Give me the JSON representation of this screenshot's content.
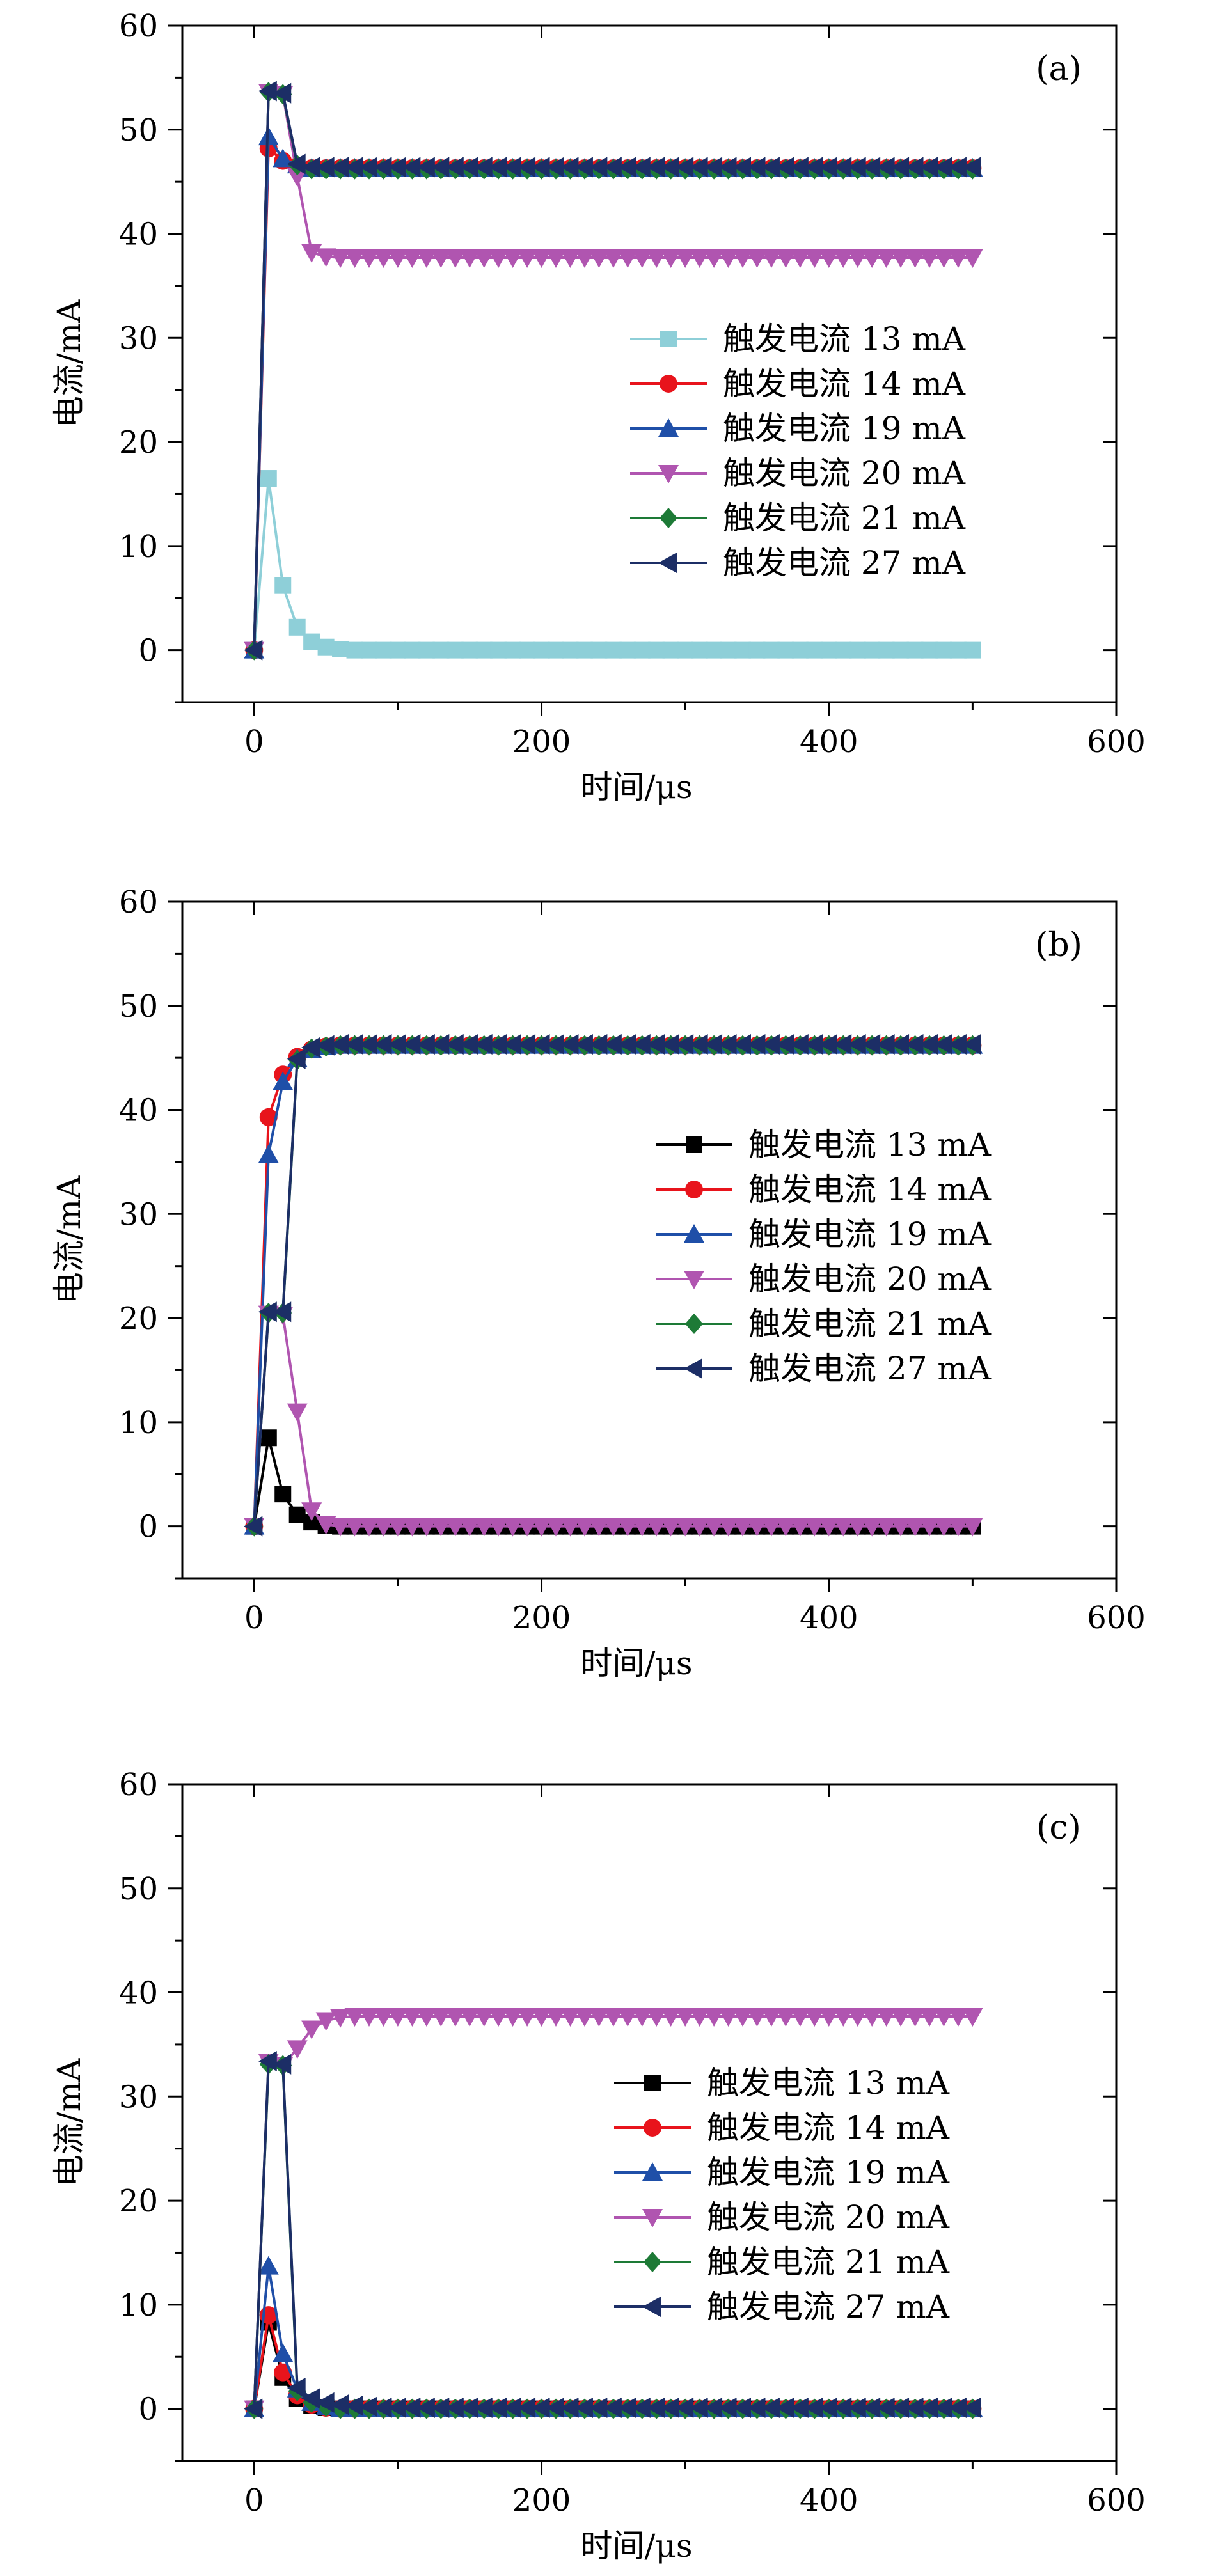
{
  "chart_data": [
    {
      "type": "line",
      "panel_label": "(a)",
      "xlabel": "时间/μs",
      "ylabel": "电流/mA",
      "xlim": [
        -50,
        600
      ],
      "ylim": [
        -5,
        60
      ],
      "xticks": [
        0,
        200,
        400,
        600
      ],
      "yticks": [
        0,
        10,
        20,
        30,
        40,
        50,
        60
      ],
      "grid": false,
      "legend_position": "center-right",
      "x": [
        0,
        10,
        20,
        30,
        40,
        50,
        60,
        70,
        80,
        90,
        100,
        110,
        120,
        130,
        140,
        150,
        160,
        170,
        180,
        190,
        200,
        210,
        220,
        230,
        240,
        250,
        260,
        270,
        280,
        290,
        300,
        310,
        320,
        330,
        340,
        350,
        360,
        370,
        380,
        390,
        400,
        410,
        420,
        430,
        440,
        450,
        460,
        470,
        480,
        490,
        500
      ],
      "series": [
        {
          "name": "触发电流 13 mA",
          "color": "#8ecfd8",
          "marker": "square",
          "head": [
            0,
            16.5,
            6.2,
            2.2,
            0.8,
            0.3,
            0.1
          ],
          "steady": 0
        },
        {
          "name": "触发电流 14 mA",
          "color": "#e8141c",
          "marker": "circle",
          "head": [
            0,
            48.2,
            47.0,
            46.5
          ],
          "steady": 46.3
        },
        {
          "name": "触发电流 19 mA",
          "color": "#1f4fa8",
          "marker": "triangle-up",
          "head": [
            0,
            49.3,
            47.2,
            46.6
          ],
          "steady": 46.3
        },
        {
          "name": "触发电流 20 mA",
          "color": "#b055b0",
          "marker": "triangle-down",
          "head": [
            0,
            53.6,
            53.4,
            45.5,
            38.2,
            37.8
          ],
          "steady": 37.7
        },
        {
          "name": "触发电流 21 mA",
          "color": "#1d7a36",
          "marker": "diamond",
          "head": [
            0,
            53.6,
            53.4,
            46.6
          ],
          "steady": 46.2
        },
        {
          "name": "触发电流 27 mA",
          "color": "#1c2e66",
          "marker": "triangle-left",
          "head": [
            0,
            53.7,
            53.5,
            46.7
          ],
          "steady": 46.4
        }
      ]
    },
    {
      "type": "line",
      "panel_label": "(b)",
      "xlabel": "时间/μs",
      "ylabel": "电流/mA",
      "xlim": [
        -50,
        600
      ],
      "ylim": [
        -5,
        60
      ],
      "xticks": [
        0,
        200,
        400,
        600
      ],
      "yticks": [
        0,
        10,
        20,
        30,
        40,
        50,
        60
      ],
      "grid": false,
      "legend_position": "center-right",
      "x": [
        0,
        10,
        20,
        30,
        40,
        50,
        60,
        70,
        80,
        90,
        100,
        110,
        120,
        130,
        140,
        150,
        160,
        170,
        180,
        190,
        200,
        210,
        220,
        230,
        240,
        250,
        260,
        270,
        280,
        290,
        300,
        310,
        320,
        330,
        340,
        350,
        360,
        370,
        380,
        390,
        400,
        410,
        420,
        430,
        440,
        450,
        460,
        470,
        480,
        490,
        500
      ],
      "series": [
        {
          "name": "触发电流 13 mA",
          "color": "#000000",
          "marker": "square",
          "head": [
            0,
            8.5,
            3.1,
            1.1,
            0.4,
            0.1
          ],
          "steady": 0
        },
        {
          "name": "触发电流 14 mA",
          "color": "#e8141c",
          "marker": "circle",
          "head": [
            0,
            39.3,
            43.4,
            45.1,
            45.8,
            46.1
          ],
          "steady": 46.2
        },
        {
          "name": "触发电流 19 mA",
          "color": "#1f4fa8",
          "marker": "triangle-up",
          "head": [
            0,
            35.7,
            42.7,
            44.9,
            45.8,
            46.1
          ],
          "steady": 46.2
        },
        {
          "name": "触发电流 20 mA",
          "color": "#b055b0",
          "marker": "triangle-down",
          "head": [
            0,
            20.4,
            20.3,
            11.0,
            1.5,
            0.2
          ],
          "steady": 0
        },
        {
          "name": "触发电流 21 mA",
          "color": "#1d7a36",
          "marker": "diamond",
          "head": [
            0,
            20.5,
            20.5,
            44.8,
            45.9,
            46.1
          ],
          "steady": 46.2
        },
        {
          "name": "触发电流 27 mA",
          "color": "#1c2e66",
          "marker": "triangle-left",
          "head": [
            0,
            20.6,
            20.6,
            44.9,
            46.0,
            46.2
          ],
          "steady": 46.3
        }
      ]
    },
    {
      "type": "line",
      "panel_label": "(c)",
      "xlabel": "时间/μs",
      "ylabel": "电流/mA",
      "xlim": [
        -50,
        600
      ],
      "ylim": [
        -5,
        60
      ],
      "xticks": [
        0,
        200,
        400,
        600
      ],
      "yticks": [
        0,
        10,
        20,
        30,
        40,
        50,
        60
      ],
      "grid": false,
      "legend_position": "center-right",
      "x": [
        0,
        10,
        20,
        30,
        40,
        50,
        60,
        70,
        80,
        90,
        100,
        110,
        120,
        130,
        140,
        150,
        160,
        170,
        180,
        190,
        200,
        210,
        220,
        230,
        240,
        250,
        260,
        270,
        280,
        290,
        300,
        310,
        320,
        330,
        340,
        350,
        360,
        370,
        380,
        390,
        400,
        410,
        420,
        430,
        440,
        450,
        460,
        470,
        480,
        490,
        500
      ],
      "series": [
        {
          "name": "触发电流 13 mA",
          "color": "#000000",
          "marker": "square",
          "head": [
            0,
            8.3,
            3.0,
            1.0,
            0.3,
            0.1
          ],
          "steady": 0
        },
        {
          "name": "触发电流 14 mA",
          "color": "#e8141c",
          "marker": "circle",
          "head": [
            0,
            9.0,
            3.5,
            1.3,
            0.4,
            0.1
          ],
          "steady": 0
        },
        {
          "name": "触发电流 19 mA",
          "color": "#1f4fa8",
          "marker": "triangle-up",
          "head": [
            0,
            13.7,
            5.3,
            1.9,
            0.6,
            0.2
          ],
          "steady": 0
        },
        {
          "name": "触发电流 20 mA",
          "color": "#b055b0",
          "marker": "triangle-down",
          "head": [
            0,
            33.3,
            33.0,
            34.6,
            36.5,
            37.3,
            37.6
          ],
          "steady": 37.7
        },
        {
          "name": "触发电流 21 mA",
          "color": "#1d7a36",
          "marker": "diamond",
          "head": [
            0,
            33.1,
            33.0,
            1.7,
            0.6,
            0.2
          ],
          "steady": 0
        },
        {
          "name": "触发电流 27 mA",
          "color": "#1c2e66",
          "marker": "triangle-left",
          "head": [
            0,
            33.4,
            33.1,
            2.0,
            1.0,
            0.6,
            0.4,
            0.3,
            0.2
          ],
          "steady": 0.1
        }
      ]
    }
  ]
}
